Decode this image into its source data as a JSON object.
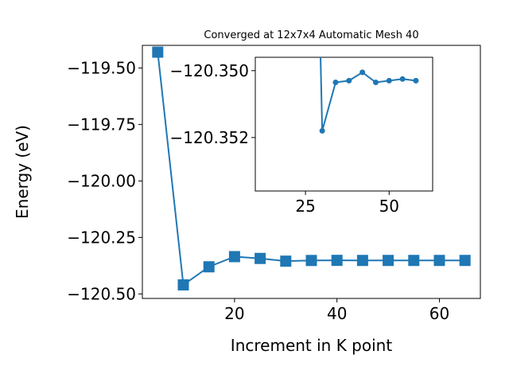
{
  "chart_data": [
    {
      "type": "line",
      "title": "Converged at 12x7x4 Automatic Mesh 40",
      "xlabel": "Increment in K point",
      "ylabel": "Energy (eV)",
      "xlim": [
        2,
        68
      ],
      "ylim": [
        -120.52,
        -119.4
      ],
      "xticks": [
        20,
        40,
        60
      ],
      "yticks": [
        -119.5,
        -119.75,
        -120.0,
        -120.25,
        -120.5
      ],
      "xtick_labels": [
        "20",
        "40",
        "60"
      ],
      "ytick_labels": [
        "−119.50",
        "−119.75",
        "−120.00",
        "−120.25",
        "−120.50"
      ],
      "marker": "square",
      "grid": false,
      "series": [
        {
          "color": "#1f77b4",
          "x": [
            5,
            10,
            15,
            20,
            25,
            30,
            35,
            40,
            45,
            50,
            55,
            60,
            65
          ],
          "y": [
            -119.43,
            -120.46,
            -120.38,
            -120.335,
            -120.343,
            -120.355,
            -120.352,
            -120.3515,
            -120.3518,
            -120.3518,
            -120.3518,
            -120.3518,
            -120.3518
          ]
        }
      ]
    },
    {
      "type": "line",
      "title": "",
      "inset": true,
      "xlim": [
        10,
        63
      ],
      "ylim": [
        -120.3536,
        -120.3496
      ],
      "xticks": [
        25,
        50
      ],
      "yticks": [
        -120.352,
        -120.35
      ],
      "xtick_labels": [
        "25",
        "50"
      ],
      "ytick_labels": [
        "−120.352",
        "−120.350"
      ],
      "marker": "circle",
      "grid": false,
      "series": [
        {
          "color": "#1f77b4",
          "x": [
            30,
            34,
            38,
            42,
            46,
            50,
            54,
            58
          ],
          "y": [
            -120.3518,
            -120.35035,
            -120.3503,
            -120.35005,
            -120.35035,
            -120.3503,
            -120.35025,
            -120.3503
          ]
        }
      ]
    }
  ]
}
